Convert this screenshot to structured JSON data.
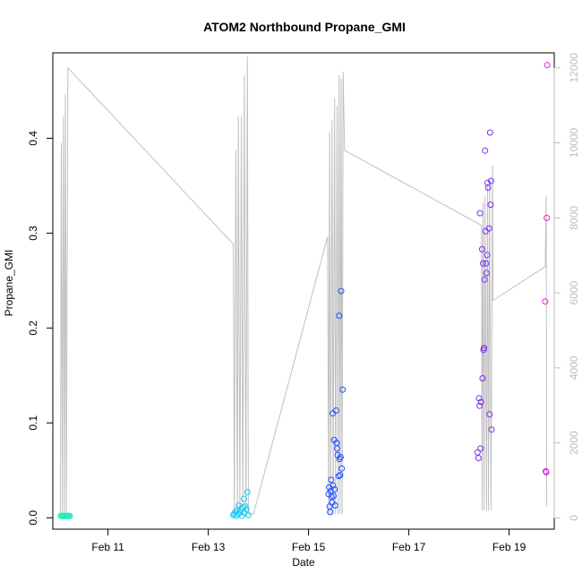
{
  "chart_data": {
    "type": "scatter",
    "title": "ATOM2 Northbound Propane_GMI",
    "xlabel": "Date",
    "ylabel": "Propane_GMI",
    "x_ticks": [
      {
        "day": 11,
        "label": "Feb 11"
      },
      {
        "day": 13,
        "label": "Feb 13"
      },
      {
        "day": 15,
        "label": "Feb 15"
      },
      {
        "day": 17,
        "label": "Feb 17"
      },
      {
        "day": 19,
        "label": "Feb 19"
      }
    ],
    "x_range_day_of_february": [
      9.9,
      19.9
    ],
    "y_left_ticks": [
      "0.0",
      "0.1",
      "0.2",
      "0.3",
      "0.4"
    ],
    "y_left_range": [
      -0.012,
      0.49
    ],
    "y_right_ticks": [
      "0",
      "2000",
      "4000",
      "6000",
      "8000",
      "10000",
      "12000"
    ],
    "y_right_range": [
      -300,
      12400
    ],
    "colors": {
      "line": "#c0c0c0",
      "right_axis": "#bdbdbd",
      "flight_1": "#19f0b8",
      "flight_2": "#1cc8ef",
      "flight_3": "#1f4dff",
      "flight_4": "#7a2ff0",
      "flight_5": "#e020e8"
    },
    "points": [
      {
        "flight": 1,
        "day": 10.06,
        "y": 0.002
      },
      {
        "flight": 1,
        "day": 10.08,
        "y": 0.002
      },
      {
        "flight": 1,
        "day": 10.1,
        "y": 0.002
      },
      {
        "flight": 1,
        "day": 10.12,
        "y": 0.002
      },
      {
        "flight": 1,
        "day": 10.14,
        "y": 0.002
      },
      {
        "flight": 1,
        "day": 10.16,
        "y": 0.002
      },
      {
        "flight": 1,
        "day": 10.18,
        "y": 0.002
      },
      {
        "flight": 1,
        "day": 10.2,
        "y": 0.002
      },
      {
        "flight": 1,
        "day": 10.22,
        "y": 0.002
      },
      {
        "flight": 1,
        "day": 10.24,
        "y": 0.002
      },
      {
        "flight": 2,
        "day": 13.5,
        "y": 0.003
      },
      {
        "flight": 2,
        "day": 13.52,
        "y": 0.004
      },
      {
        "flight": 2,
        "day": 13.54,
        "y": 0.006
      },
      {
        "flight": 2,
        "day": 13.56,
        "y": 0.002
      },
      {
        "flight": 2,
        "day": 13.58,
        "y": 0.008
      },
      {
        "flight": 2,
        "day": 13.6,
        "y": 0.004
      },
      {
        "flight": 2,
        "day": 13.61,
        "y": 0.013
      },
      {
        "flight": 2,
        "day": 13.63,
        "y": 0.006
      },
      {
        "flight": 2,
        "day": 13.65,
        "y": 0.009
      },
      {
        "flight": 2,
        "day": 13.67,
        "y": 0.002
      },
      {
        "flight": 2,
        "day": 13.69,
        "y": 0.011
      },
      {
        "flight": 2,
        "day": 13.71,
        "y": 0.02
      },
      {
        "flight": 2,
        "day": 13.72,
        "y": 0.005
      },
      {
        "flight": 2,
        "day": 13.74,
        "y": 0.012
      },
      {
        "flight": 2,
        "day": 13.76,
        "y": 0.009
      },
      {
        "flight": 2,
        "day": 13.78,
        "y": 0.027
      },
      {
        "flight": 2,
        "day": 13.8,
        "y": 0.003
      },
      {
        "flight": 3,
        "day": 15.4,
        "y": 0.025
      },
      {
        "flight": 3,
        "day": 15.41,
        "y": 0.032
      },
      {
        "flight": 3,
        "day": 15.42,
        "y": 0.012
      },
      {
        "flight": 3,
        "day": 15.43,
        "y": 0.006
      },
      {
        "flight": 3,
        "day": 15.44,
        "y": 0.028
      },
      {
        "flight": 3,
        "day": 15.45,
        "y": 0.04
      },
      {
        "flight": 3,
        "day": 15.46,
        "y": 0.022
      },
      {
        "flight": 3,
        "day": 15.47,
        "y": 0.016
      },
      {
        "flight": 3,
        "day": 15.48,
        "y": 0.11
      },
      {
        "flight": 3,
        "day": 15.49,
        "y": 0.034
      },
      {
        "flight": 3,
        "day": 15.5,
        "y": 0.023
      },
      {
        "flight": 3,
        "day": 15.51,
        "y": 0.082
      },
      {
        "flight": 3,
        "day": 15.52,
        "y": 0.03
      },
      {
        "flight": 3,
        "day": 15.53,
        "y": 0.013
      },
      {
        "flight": 3,
        "day": 15.55,
        "y": 0.113
      },
      {
        "flight": 3,
        "day": 15.56,
        "y": 0.079
      },
      {
        "flight": 3,
        "day": 15.57,
        "y": 0.073
      },
      {
        "flight": 3,
        "day": 15.58,
        "y": 0.066
      },
      {
        "flight": 3,
        "day": 15.6,
        "y": 0.044
      },
      {
        "flight": 3,
        "day": 15.61,
        "y": 0.213
      },
      {
        "flight": 3,
        "day": 15.62,
        "y": 0.062
      },
      {
        "flight": 3,
        "day": 15.63,
        "y": 0.045
      },
      {
        "flight": 3,
        "day": 15.64,
        "y": 0.064
      },
      {
        "flight": 3,
        "day": 15.65,
        "y": 0.239
      },
      {
        "flight": 3,
        "day": 15.66,
        "y": 0.052
      },
      {
        "flight": 3,
        "day": 15.68,
        "y": 0.135
      },
      {
        "flight": 4,
        "day": 18.37,
        "y": 0.069
      },
      {
        "flight": 4,
        "day": 18.39,
        "y": 0.063
      },
      {
        "flight": 4,
        "day": 18.4,
        "y": 0.126
      },
      {
        "flight": 4,
        "day": 18.41,
        "y": 0.118
      },
      {
        "flight": 4,
        "day": 18.42,
        "y": 0.321
      },
      {
        "flight": 4,
        "day": 18.43,
        "y": 0.073
      },
      {
        "flight": 4,
        "day": 18.44,
        "y": 0.122
      },
      {
        "flight": 4,
        "day": 18.46,
        "y": 0.283
      },
      {
        "flight": 4,
        "day": 18.47,
        "y": 0.147
      },
      {
        "flight": 4,
        "day": 18.48,
        "y": 0.268
      },
      {
        "flight": 4,
        "day": 18.49,
        "y": 0.177
      },
      {
        "flight": 4,
        "day": 18.5,
        "y": 0.179
      },
      {
        "flight": 4,
        "day": 18.51,
        "y": 0.251
      },
      {
        "flight": 4,
        "day": 18.52,
        "y": 0.387
      },
      {
        "flight": 4,
        "day": 18.53,
        "y": 0.302
      },
      {
        "flight": 4,
        "day": 18.54,
        "y": 0.268
      },
      {
        "flight": 4,
        "day": 18.55,
        "y": 0.258
      },
      {
        "flight": 4,
        "day": 18.56,
        "y": 0.277
      },
      {
        "flight": 4,
        "day": 18.57,
        "y": 0.353
      },
      {
        "flight": 4,
        "day": 18.58,
        "y": 0.348
      },
      {
        "flight": 4,
        "day": 18.6,
        "y": 0.305
      },
      {
        "flight": 4,
        "day": 18.61,
        "y": 0.109
      },
      {
        "flight": 4,
        "day": 18.62,
        "y": 0.406
      },
      {
        "flight": 4,
        "day": 18.63,
        "y": 0.33
      },
      {
        "flight": 4,
        "day": 18.64,
        "y": 0.355
      },
      {
        "flight": 4,
        "day": 18.65,
        "y": 0.093
      },
      {
        "flight": 5,
        "day": 19.72,
        "y": 0.228
      },
      {
        "flight": 5,
        "day": 19.73,
        "y": 0.049
      },
      {
        "flight": 5,
        "day": 19.74,
        "y": 0.048
      },
      {
        "flight": 5,
        "day": 19.75,
        "y": 0.316
      },
      {
        "flight": 5,
        "day": 19.76,
        "y": 0.477
      }
    ],
    "altitude_trace": [
      [
        10.05,
        0
      ],
      [
        10.07,
        10000
      ],
      [
        10.09,
        0
      ],
      [
        10.11,
        10700
      ],
      [
        10.13,
        0
      ],
      [
        10.15,
        11300
      ],
      [
        10.17,
        0
      ],
      [
        10.2,
        12000
      ],
      [
        13.5,
        7300
      ],
      [
        13.52,
        100
      ],
      [
        13.55,
        9800
      ],
      [
        13.58,
        100
      ],
      [
        13.6,
        10700
      ],
      [
        13.63,
        100
      ],
      [
        13.66,
        10700
      ],
      [
        13.69,
        100
      ],
      [
        13.72,
        11800
      ],
      [
        13.75,
        100
      ],
      [
        13.78,
        12300
      ],
      [
        13.8,
        100
      ],
      [
        13.9,
        100
      ],
      [
        15.38,
        7500
      ],
      [
        15.4,
        100
      ],
      [
        15.42,
        10300
      ],
      [
        15.44,
        100
      ],
      [
        15.47,
        10600
      ],
      [
        15.49,
        100
      ],
      [
        15.52,
        11200
      ],
      [
        15.54,
        100
      ],
      [
        15.57,
        11000
      ],
      [
        15.59,
        100
      ],
      [
        15.61,
        11800
      ],
      [
        15.63,
        100
      ],
      [
        15.65,
        11700
      ],
      [
        15.67,
        100
      ],
      [
        15.69,
        11900
      ],
      [
        15.72,
        9800
      ],
      [
        18.45,
        7800
      ],
      [
        18.46,
        200
      ],
      [
        18.48,
        8400
      ],
      [
        18.5,
        200
      ],
      [
        18.52,
        8600
      ],
      [
        18.55,
        200
      ],
      [
        18.57,
        8900
      ],
      [
        18.59,
        200
      ],
      [
        18.61,
        9000
      ],
      [
        18.64,
        200
      ],
      [
        18.67,
        9400
      ],
      [
        18.68,
        5800
      ],
      [
        19.72,
        6700
      ],
      [
        19.74,
        8600
      ],
      [
        19.75,
        300
      ]
    ]
  }
}
